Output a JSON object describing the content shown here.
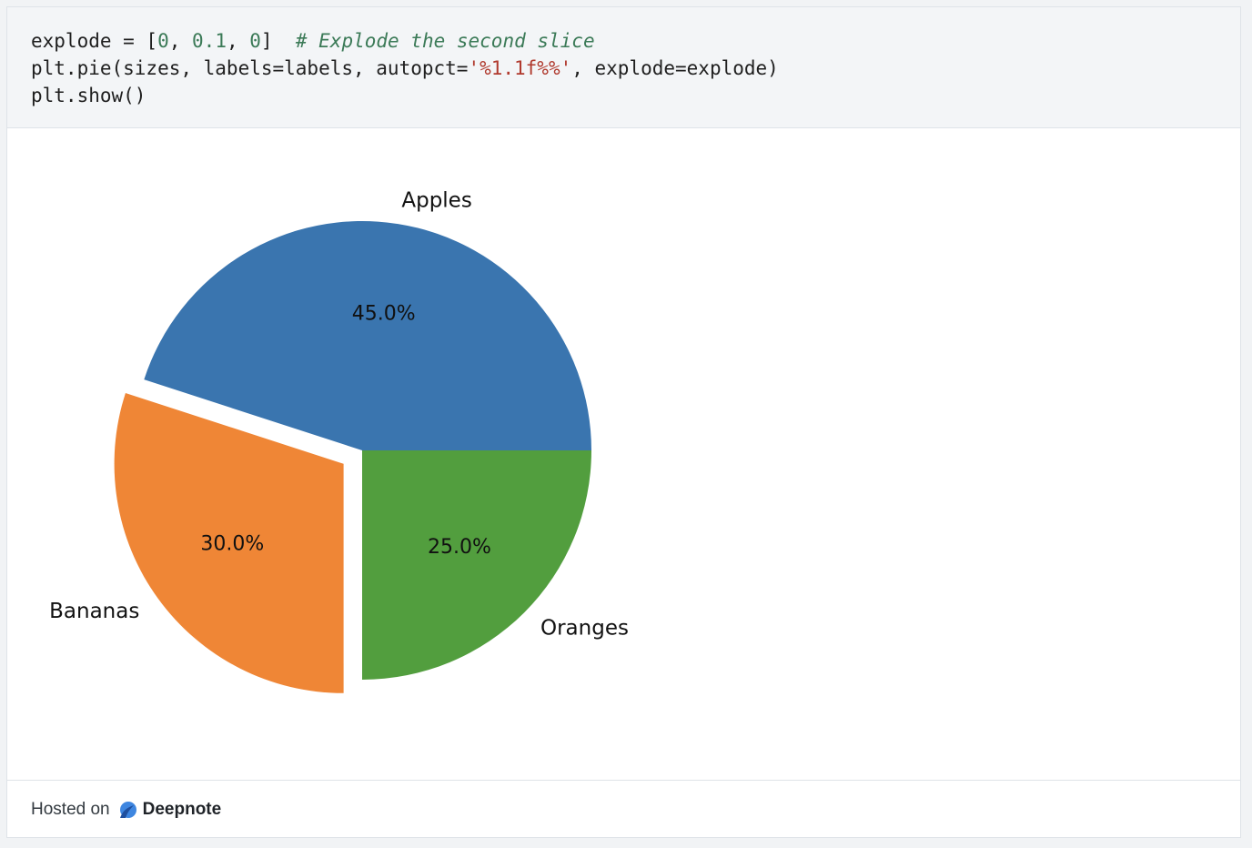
{
  "code": {
    "line1_code": "explode = [",
    "line1_num_a": "0",
    "line1_sep_a": ", ",
    "line1_num_b": "0.1",
    "line1_sep_b": ", ",
    "line1_num_c": "0",
    "line1_close": "]",
    "line1_gap": "  ",
    "line1_comment": "# Explode the second slice",
    "line2_pre": "plt.pie(sizes, labels=labels, autopct=",
    "line2_str": "'%1.1f%%'",
    "line2_post": ", explode=explode)",
    "line3": "plt.show()"
  },
  "chart_data": {
    "type": "pie",
    "categories": [
      "Apples",
      "Bananas",
      "Oranges"
    ],
    "values": [
      45,
      30,
      25
    ],
    "labels_pct": [
      "45.0%",
      "30.0%",
      "25.0%"
    ],
    "explode": [
      0,
      0.1,
      0
    ],
    "colors": [
      "#3a75af",
      "#ef8636",
      "#529e3e"
    ],
    "start_angle": 0,
    "direction": "counterclockwise"
  },
  "footer": {
    "hosted_on": "Hosted on",
    "brand": "Deepnote"
  }
}
